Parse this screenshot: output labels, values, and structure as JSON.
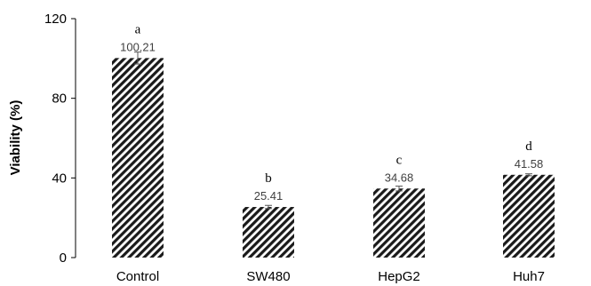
{
  "chart_data": {
    "type": "bar",
    "title": "",
    "xlabel": "",
    "ylabel": "Viability (%)",
    "ylim": [
      0,
      120
    ],
    "yticks": [
      0,
      40,
      80,
      120
    ],
    "grid": false,
    "bar_fill": "diagonal-hatch",
    "bar_color": "#1a1a1a",
    "categories": [
      "Control",
      "SW480",
      "HepG2",
      "Huh7"
    ],
    "values": [
      100.21,
      25.41,
      34.68,
      41.58
    ],
    "value_labels": [
      "100.21",
      "25.41",
      "34.68",
      "41.58"
    ],
    "errors": [
      3.0,
      0.8,
      1.2,
      0.5
    ],
    "significance": [
      "a",
      "b",
      "c",
      "d"
    ]
  }
}
